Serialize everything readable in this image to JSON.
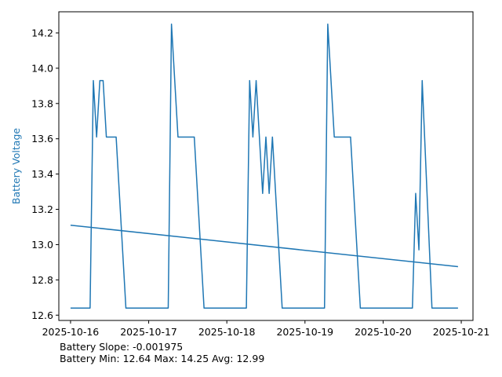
{
  "chart_data": {
    "type": "line",
    "ylabel": "Battery Voltage",
    "ylim": [
      12.57,
      14.32
    ],
    "xlim": [
      "2025-10-15T20:24",
      "2025-10-21T03:36"
    ],
    "x_ticks": [
      "2025-10-16",
      "2025-10-17",
      "2025-10-18",
      "2025-10-19",
      "2025-10-20",
      "2025-10-21"
    ],
    "y_ticks": [
      12.6,
      12.8,
      13.0,
      13.2,
      13.4,
      13.6,
      13.8,
      14.0,
      14.2
    ],
    "grid": false,
    "colors": {
      "series": "#1f77b4",
      "ylabel": "#1f77b4"
    },
    "series": [
      {
        "x": [
          "2025-10-16T00:00",
          "2025-10-16T06:00",
          "2025-10-16T07:00",
          "2025-10-16T08:00",
          "2025-10-16T09:00",
          "2025-10-16T10:00",
          "2025-10-16T11:00",
          "2025-10-16T14:00",
          "2025-10-16T17:00",
          "2025-10-16T21:00",
          "2025-10-17T06:00",
          "2025-10-17T07:00",
          "2025-10-17T09:00",
          "2025-10-17T14:00",
          "2025-10-17T17:00",
          "2025-10-18T06:00",
          "2025-10-18T07:00",
          "2025-10-18T08:00",
          "2025-10-18T09:00",
          "2025-10-18T11:00",
          "2025-10-18T12:00",
          "2025-10-18T13:00",
          "2025-10-18T14:00",
          "2025-10-18T17:00",
          "2025-10-19T06:00",
          "2025-10-19T07:00",
          "2025-10-19T09:00",
          "2025-10-19T14:00",
          "2025-10-19T17:00",
          "2025-10-20T09:00",
          "2025-10-20T10:00",
          "2025-10-20T11:00",
          "2025-10-20T12:00",
          "2025-10-20T15:00",
          "2025-10-20T16:00",
          "2025-10-20T23:00"
        ],
        "values": [
          12.64,
          12.64,
          13.93,
          13.61,
          13.93,
          13.93,
          13.61,
          13.61,
          12.64,
          12.64,
          12.64,
          14.25,
          13.61,
          13.61,
          12.64,
          12.64,
          13.93,
          13.61,
          13.93,
          13.29,
          13.61,
          13.29,
          13.61,
          12.64,
          12.64,
          14.25,
          13.61,
          13.61,
          12.64,
          12.64,
          13.29,
          12.97,
          13.93,
          12.64,
          12.64,
          12.64
        ]
      },
      {
        "x": [
          "2025-10-16T00:00",
          "2025-10-20T23:00"
        ],
        "values": [
          13.11,
          12.875
        ]
      }
    ]
  },
  "stats": {
    "line1": "Battery Slope: -0.001975",
    "line2": "Battery Min: 12.64 Max: 14.25 Avg: 12.99"
  }
}
